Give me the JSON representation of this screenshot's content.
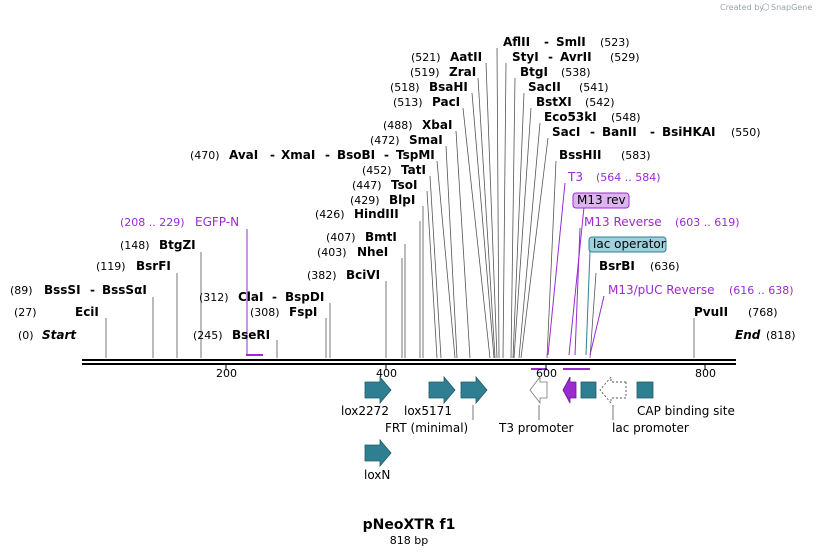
{
  "watermark": {
    "prefix": "Created by",
    "brand": "SnapGene"
  },
  "title": "pNeoXTR f1",
  "subtitle": "818 bp",
  "sequence_length": 818,
  "ends": {
    "start": "Start",
    "start_pos": "(0)",
    "end": "End",
    "end_pos": "(818)"
  },
  "ruler": {
    "ticks": [
      200,
      400,
      600,
      800
    ],
    "tick_labels": [
      "200",
      "400",
      "600",
      "800"
    ]
  },
  "enzyme_sites": [
    {
      "name": "EciI",
      "pos": "(27)"
    },
    {
      "name": "BssSI",
      "name2": "BssSαI",
      "pos": "(89)"
    },
    {
      "name": "BsrFI",
      "pos": "(119)"
    },
    {
      "name": "BtgZI",
      "pos": "(148)"
    },
    {
      "name": "BseRI",
      "pos": "(245)"
    },
    {
      "name": "FspI",
      "pos": "(308)"
    },
    {
      "name": "ClaI",
      "name2": "BspDI",
      "pos": "(312)"
    },
    {
      "name": "BciVI",
      "pos": "(382)"
    },
    {
      "name": "NheI",
      "pos": "(403)"
    },
    {
      "name": "BmtI",
      "pos": "(407)"
    },
    {
      "name": "HindIII",
      "pos": "(426)"
    },
    {
      "name": "BlpI",
      "pos": "(429)"
    },
    {
      "name": "TsoI",
      "pos": "(447)"
    },
    {
      "name": "TatI",
      "pos": "(452)"
    },
    {
      "name": "AvaI",
      "name2": "XmaI",
      "name3": "BsoBI",
      "name4": "TspMI",
      "pos": "(470)"
    },
    {
      "name": "SmaI",
      "pos": "(472)"
    },
    {
      "name": "XbaI",
      "pos": "(488)"
    },
    {
      "name": "PacI",
      "pos": "(513)"
    },
    {
      "name": "BsaHI",
      "pos": "(518)"
    },
    {
      "name": "ZraI",
      "pos": "(519)"
    },
    {
      "name": "AatII",
      "pos": "(521)"
    },
    {
      "name": "AflII",
      "name2": "SmlI",
      "pos": "(523)"
    },
    {
      "name": "StyI",
      "name2": "AvrII",
      "pos": "(529)"
    },
    {
      "name": "BtgI",
      "pos": "(538)"
    },
    {
      "name": "SacII",
      "pos": "(541)"
    },
    {
      "name": "BstXI",
      "pos": "(542)"
    },
    {
      "name": "Eco53kI",
      "pos": "(548)"
    },
    {
      "name": "SacI",
      "name2": "BanII",
      "name3": "BsiHKAI",
      "pos": "(550)"
    },
    {
      "name": "BssHII",
      "pos": "(583)"
    },
    {
      "name": "BsrBI",
      "pos": "(636)"
    },
    {
      "name": "PvuII",
      "pos": "(768)"
    }
  ],
  "primers": [
    {
      "name": "EGFP-N",
      "range": "(208 .. 229)"
    },
    {
      "name": "T3",
      "range": "(564 .. 584)"
    },
    {
      "name": "M13 rev",
      "boxed": true
    },
    {
      "name": "M13 Reverse",
      "range": "(603 .. 619)"
    },
    {
      "name": "lac operator",
      "boxed": true
    },
    {
      "name": "M13/pUC Reverse",
      "range": "(616 .. 638)"
    }
  ],
  "features": [
    {
      "name": "lox2272"
    },
    {
      "name": "lox5171"
    },
    {
      "name": "FRT (minimal)"
    },
    {
      "name": "T3 promoter"
    },
    {
      "name": "lac promoter"
    },
    {
      "name": "CAP binding site"
    },
    {
      "name": "loxN"
    }
  ],
  "colors": {
    "feature_teal": "#2f7f93",
    "primer_purple": "#9b2bd1",
    "primer_box_purple": "#dcb4ee",
    "operator_box_blue": "#9fd0dc",
    "backbone": "#000000"
  }
}
